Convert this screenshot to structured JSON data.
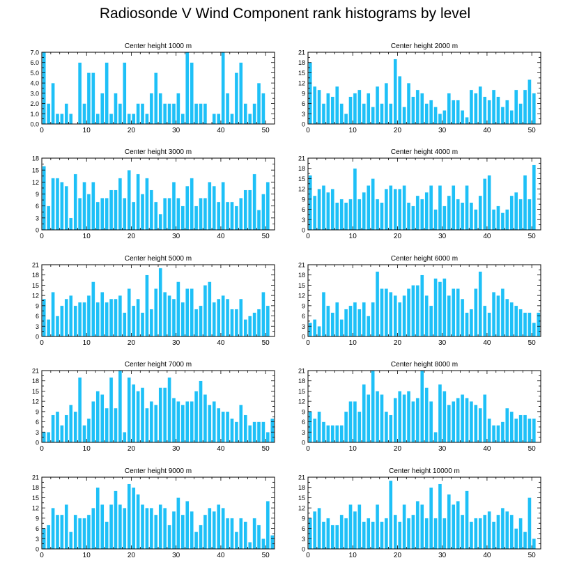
{
  "page": {
    "title": "Radiosonde V Wind Component rank histograms by level"
  },
  "style": {
    "bar_color": "#1ec0f7",
    "bar_edge": "#ffffff",
    "axis_color": "#000000"
  },
  "chart_data": [
    {
      "type": "bar",
      "title": "Center height 1000 m",
      "xlim": [
        0,
        52
      ],
      "ylim": [
        0,
        7
      ],
      "xticks": [
        0,
        10,
        20,
        30,
        40,
        50
      ],
      "yticks": [
        0,
        1,
        2,
        3,
        4,
        5,
        6,
        7
      ],
      "ytick_labels": [
        "0.0",
        "1.0",
        "2.0",
        "3.0",
        "4.0",
        "5.0",
        "6.0",
        "7.0"
      ],
      "values": [
        7,
        2,
        4,
        1,
        1,
        2,
        1,
        0,
        6,
        2,
        5,
        5,
        1,
        3,
        6,
        1,
        3,
        2,
        6,
        1,
        1,
        2,
        2,
        1,
        3,
        5,
        3,
        2,
        2,
        2,
        3,
        1,
        7,
        6,
        2,
        2,
        2,
        0,
        1,
        1,
        7,
        3,
        1,
        5,
        6,
        2,
        1,
        2,
        4,
        3,
        0,
        0
      ]
    },
    {
      "type": "bar",
      "title": "Center height 2000 m",
      "xlim": [
        0,
        52
      ],
      "ylim": [
        0,
        21
      ],
      "xticks": [
        0,
        10,
        20,
        30,
        40,
        50
      ],
      "yticks": [
        0,
        3,
        6,
        9,
        12,
        15,
        18,
        21
      ],
      "ytick_labels": [
        "0",
        "3",
        "6",
        "9",
        "12",
        "15",
        "18",
        "21"
      ],
      "values": [
        18,
        11,
        10,
        6,
        9,
        8,
        11,
        6,
        3,
        8,
        9,
        10,
        6,
        9,
        5,
        11,
        6,
        12,
        6,
        19,
        14,
        5,
        12,
        8,
        10,
        9,
        6,
        7,
        5,
        3,
        4,
        9,
        7,
        7,
        4,
        2,
        10,
        9,
        11,
        8,
        7,
        10,
        8,
        5,
        7,
        4,
        10,
        6,
        10,
        13,
        9,
        0
      ]
    },
    {
      "type": "bar",
      "title": "Center height 3000 m",
      "xlim": [
        0,
        52
      ],
      "ylim": [
        0,
        18
      ],
      "xticks": [
        0,
        10,
        20,
        30,
        40,
        50
      ],
      "yticks": [
        0,
        3,
        6,
        9,
        12,
        15,
        18
      ],
      "ytick_labels": [
        "0",
        "3",
        "6",
        "9",
        "12",
        "15",
        "18"
      ],
      "values": [
        16,
        6,
        13,
        13,
        12,
        11,
        3,
        14,
        8,
        12,
        9,
        12,
        7,
        8,
        8,
        10,
        10,
        13,
        8,
        15,
        7,
        14,
        9,
        13,
        10,
        7,
        4,
        8,
        8,
        12,
        8,
        6,
        11,
        13,
        6,
        8,
        8,
        12,
        11,
        7,
        12,
        7,
        7,
        6,
        8,
        10,
        10,
        14,
        5,
        9,
        12,
        0
      ]
    },
    {
      "type": "bar",
      "title": "Center height 4000 m",
      "xlim": [
        0,
        52
      ],
      "ylim": [
        0,
        21
      ],
      "xticks": [
        0,
        10,
        20,
        30,
        40,
        50
      ],
      "yticks": [
        0,
        3,
        6,
        9,
        12,
        15,
        18,
        21
      ],
      "ytick_labels": [
        "0",
        "3",
        "6",
        "9",
        "12",
        "15",
        "18",
        "21"
      ],
      "values": [
        16,
        10,
        12,
        13,
        11,
        12,
        8,
        9,
        8,
        9,
        18,
        9,
        11,
        13,
        15,
        9,
        8,
        12,
        13,
        12,
        12,
        13,
        8,
        7,
        10,
        9,
        11,
        13,
        6,
        13,
        7,
        10,
        13,
        9,
        8,
        13,
        8,
        6,
        10,
        15,
        16,
        6,
        7,
        5,
        6,
        10,
        11,
        9,
        16,
        9,
        19,
        0
      ]
    },
    {
      "type": "bar",
      "title": "Center height 5000 m",
      "xlim": [
        0,
        52
      ],
      "ylim": [
        0,
        21
      ],
      "xticks": [
        0,
        10,
        20,
        30,
        40,
        50
      ],
      "yticks": [
        0,
        3,
        6,
        9,
        12,
        15,
        18,
        21
      ],
      "ytick_labels": [
        "0",
        "3",
        "6",
        "9",
        "12",
        "15",
        "18",
        "21"
      ],
      "values": [
        11,
        5,
        13,
        6,
        9,
        11,
        12,
        9,
        10,
        10,
        12,
        16,
        10,
        13,
        10,
        11,
        11,
        12,
        7,
        14,
        9,
        11,
        7,
        18,
        8,
        14,
        20,
        13,
        12,
        11,
        16,
        10,
        14,
        14,
        8,
        9,
        15,
        16,
        10,
        11,
        12,
        11,
        8,
        8,
        11,
        5,
        6,
        7,
        8,
        13,
        9,
        0
      ]
    },
    {
      "type": "bar",
      "title": "Center height 6000 m",
      "xlim": [
        0,
        52
      ],
      "ylim": [
        0,
        21
      ],
      "xticks": [
        0,
        10,
        20,
        30,
        40,
        50
      ],
      "yticks": [
        0,
        3,
        6,
        9,
        12,
        15,
        18,
        21
      ],
      "ytick_labels": [
        "0",
        "3",
        "6",
        "9",
        "12",
        "15",
        "18",
        "21"
      ],
      "values": [
        4,
        5,
        3,
        13,
        9,
        7,
        10,
        5,
        8,
        9,
        10,
        8,
        10,
        6,
        10,
        19,
        14,
        14,
        13,
        12,
        10,
        12,
        14,
        15,
        15,
        18,
        12,
        9,
        17,
        16,
        17,
        12,
        14,
        14,
        11,
        7,
        8,
        14,
        19,
        9,
        7,
        13,
        12,
        14,
        11,
        10,
        9,
        8,
        7,
        7,
        4,
        7
      ]
    },
    {
      "type": "bar",
      "title": "Center height 7000 m",
      "xlim": [
        0,
        52
      ],
      "ylim": [
        0,
        21
      ],
      "xticks": [
        0,
        10,
        20,
        30,
        40,
        50
      ],
      "yticks": [
        0,
        3,
        6,
        9,
        12,
        15,
        18,
        21
      ],
      "ytick_labels": [
        "0",
        "3",
        "6",
        "9",
        "12",
        "15",
        "18",
        "21"
      ],
      "values": [
        3,
        3,
        8,
        9,
        5,
        8,
        11,
        9,
        19,
        5,
        7,
        12,
        15,
        14,
        10,
        19,
        10,
        21,
        3,
        19,
        17,
        15,
        16,
        10,
        12,
        11,
        16,
        16,
        19,
        13,
        12,
        11,
        12,
        12,
        15,
        18,
        14,
        11,
        12,
        10,
        9,
        9,
        7,
        6,
        11,
        8,
        5,
        6,
        6,
        6,
        3,
        7
      ]
    },
    {
      "type": "bar",
      "title": "Center height 8000 m",
      "xlim": [
        0,
        52
      ],
      "ylim": [
        0,
        21
      ],
      "xticks": [
        0,
        10,
        20,
        30,
        40,
        50
      ],
      "yticks": [
        0,
        3,
        6,
        9,
        12,
        15,
        18,
        21
      ],
      "ytick_labels": [
        "0",
        "3",
        "6",
        "9",
        "12",
        "15",
        "18",
        "21"
      ],
      "values": [
        9,
        7,
        9,
        6,
        5,
        5,
        5,
        5,
        9,
        12,
        12,
        9,
        17,
        14,
        21,
        15,
        14,
        9,
        8,
        13,
        15,
        14,
        15,
        12,
        13,
        21,
        16,
        12,
        3,
        17,
        15,
        11,
        12,
        13,
        14,
        13,
        12,
        11,
        10,
        14,
        7,
        5,
        5,
        6,
        10,
        9,
        7,
        8,
        8,
        7,
        7,
        0
      ]
    },
    {
      "type": "bar",
      "title": "Center height 9000 m",
      "xlim": [
        0,
        52
      ],
      "ylim": [
        0,
        21
      ],
      "xticks": [
        0,
        10,
        20,
        30,
        40,
        50
      ],
      "yticks": [
        0,
        3,
        6,
        9,
        12,
        15,
        18,
        21
      ],
      "ytick_labels": [
        "0",
        "3",
        "6",
        "9",
        "12",
        "15",
        "18",
        "21"
      ],
      "values": [
        6,
        7,
        12,
        10,
        10,
        13,
        5,
        10,
        9,
        9,
        10,
        12,
        18,
        13,
        8,
        13,
        17,
        13,
        12,
        19,
        18,
        16,
        13,
        12,
        12,
        10,
        13,
        12,
        7,
        11,
        15,
        10,
        14,
        11,
        5,
        7,
        10,
        12,
        11,
        13,
        12,
        9,
        9,
        5,
        9,
        8,
        2,
        9,
        7,
        3,
        14,
        4
      ]
    },
    {
      "type": "bar",
      "title": "Center height 10000 m",
      "xlim": [
        0,
        52
      ],
      "ylim": [
        0,
        21
      ],
      "xticks": [
        0,
        10,
        20,
        30,
        40,
        50
      ],
      "yticks": [
        0,
        3,
        6,
        9,
        12,
        15,
        18,
        21
      ],
      "ytick_labels": [
        "0",
        "3",
        "6",
        "9",
        "12",
        "15",
        "18",
        "21"
      ],
      "values": [
        9,
        11,
        12,
        8,
        9,
        7,
        7,
        10,
        9,
        13,
        11,
        13,
        8,
        9,
        8,
        13,
        8,
        9,
        20,
        10,
        8,
        13,
        9,
        10,
        14,
        13,
        9,
        18,
        9,
        19,
        9,
        16,
        13,
        14,
        10,
        17,
        8,
        9,
        9,
        10,
        11,
        8,
        10,
        12,
        11,
        10,
        6,
        9,
        5,
        15,
        3,
        0
      ]
    }
  ]
}
